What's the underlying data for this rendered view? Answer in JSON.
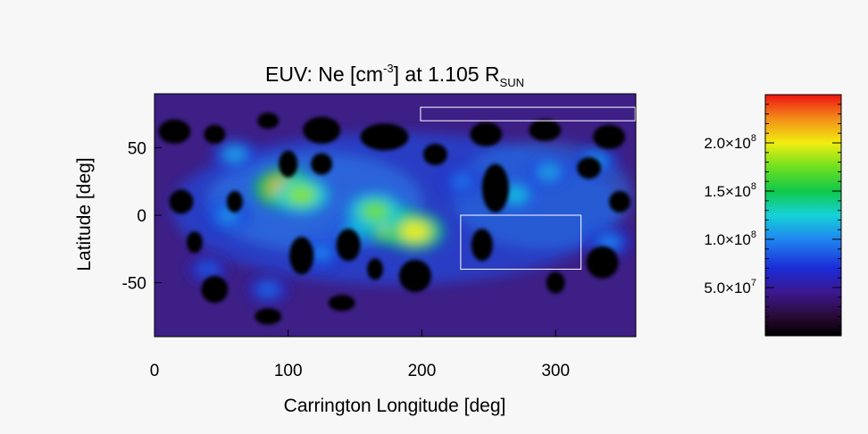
{
  "chart_data": {
    "type": "heatmap",
    "title": {
      "prefix": "EUV: Ne [cm",
      "sup": "-3",
      "middle": "] at 1.105 R",
      "sub": "SUN"
    },
    "xlabel": "Carrington Longitude [deg]",
    "ylabel": "Latitude [deg]",
    "xlim": [
      0,
      360
    ],
    "ylim": [
      -90,
      90
    ],
    "xticks": [
      0,
      100,
      200,
      300
    ],
    "yticks": [
      50,
      0,
      -50
    ],
    "colorbar": {
      "min": 0,
      "max": 250000000,
      "ticks": [
        {
          "value": 50000000,
          "mantissa": "5.0",
          "exp": "7"
        },
        {
          "value": 100000000,
          "mantissa": "1.0",
          "exp": "8"
        },
        {
          "value": 150000000,
          "mantissa": "1.5",
          "exp": "8"
        },
        {
          "value": 200000000,
          "mantissa": "2.0",
          "exp": "8"
        }
      ],
      "times": "×10"
    },
    "hotspots": [
      {
        "lon": 97,
        "lat": 20,
        "value": 215000000
      },
      {
        "lon": 110,
        "lat": 15,
        "value": 180000000
      },
      {
        "lon": 150,
        "lat": -12,
        "value": 115000000
      },
      {
        "lon": 180,
        "lat": -8,
        "value": 205000000
      },
      {
        "lon": 195,
        "lat": -12,
        "value": 200000000
      },
      {
        "lon": 165,
        "lat": 3,
        "value": 175000000
      },
      {
        "lon": 55,
        "lat": 0,
        "value": 105000000
      },
      {
        "lon": 60,
        "lat": 45,
        "value": 110000000
      },
      {
        "lon": 125,
        "lat": -28,
        "value": 100000000
      },
      {
        "lon": 270,
        "lat": 15,
        "value": 120000000
      },
      {
        "lon": 295,
        "lat": 32,
        "value": 110000000
      },
      {
        "lon": 330,
        "lat": 40,
        "value": 105000000
      },
      {
        "lon": 340,
        "lat": -20,
        "value": 100000000
      },
      {
        "lon": 85,
        "lat": -55,
        "value": 90000000
      },
      {
        "lon": 230,
        "lat": 25,
        "value": 95000000
      },
      {
        "lon": 40,
        "lat": -40,
        "value": 85000000
      }
    ],
    "missing_regions": [
      {
        "lon": 15,
        "lat": 62,
        "rx": 12,
        "ry": 9
      },
      {
        "lon": 45,
        "lat": 60,
        "rx": 8,
        "ry": 7
      },
      {
        "lon": 85,
        "lat": 70,
        "rx": 8,
        "ry": 6
      },
      {
        "lon": 125,
        "lat": 63,
        "rx": 14,
        "ry": 10
      },
      {
        "lon": 172,
        "lat": 58,
        "rx": 18,
        "ry": 10
      },
      {
        "lon": 248,
        "lat": 60,
        "rx": 12,
        "ry": 9
      },
      {
        "lon": 292,
        "lat": 63,
        "rx": 12,
        "ry": 8
      },
      {
        "lon": 340,
        "lat": 58,
        "rx": 12,
        "ry": 9
      },
      {
        "lon": 100,
        "lat": 38,
        "rx": 7,
        "ry": 10
      },
      {
        "lon": 125,
        "lat": 38,
        "rx": 8,
        "ry": 8
      },
      {
        "lon": 210,
        "lat": 45,
        "rx": 9,
        "ry": 8
      },
      {
        "lon": 255,
        "lat": 20,
        "rx": 10,
        "ry": 18
      },
      {
        "lon": 348,
        "lat": 10,
        "rx": 8,
        "ry": 8
      },
      {
        "lon": 325,
        "lat": 35,
        "rx": 9,
        "ry": 8
      },
      {
        "lon": 335,
        "lat": -35,
        "rx": 12,
        "ry": 12
      },
      {
        "lon": 20,
        "lat": 10,
        "rx": 9,
        "ry": 9
      },
      {
        "lon": 60,
        "lat": 10,
        "rx": 6,
        "ry": 8
      },
      {
        "lon": 110,
        "lat": -30,
        "rx": 9,
        "ry": 14
      },
      {
        "lon": 145,
        "lat": -22,
        "rx": 9,
        "ry": 12
      },
      {
        "lon": 195,
        "lat": -45,
        "rx": 12,
        "ry": 12
      },
      {
        "lon": 245,
        "lat": -22,
        "rx": 8,
        "ry": 12
      },
      {
        "lon": 300,
        "lat": -50,
        "rx": 7,
        "ry": 8
      },
      {
        "lon": 45,
        "lat": -55,
        "rx": 10,
        "ry": 10
      },
      {
        "lon": 85,
        "lat": -75,
        "rx": 10,
        "ry": 6
      },
      {
        "lon": 140,
        "lat": -65,
        "rx": 10,
        "ry": 6
      },
      {
        "lon": 165,
        "lat": -40,
        "rx": 6,
        "ry": 8
      },
      {
        "lon": 30,
        "lat": -20,
        "rx": 6,
        "ry": 8
      }
    ],
    "boxes": [
      {
        "lon0": 199,
        "lon1": 360,
        "lat0": 70,
        "lat1": 80
      },
      {
        "lon0": 229,
        "lon1": 319,
        "lat0": -40,
        "lat1": 0
      }
    ]
  }
}
